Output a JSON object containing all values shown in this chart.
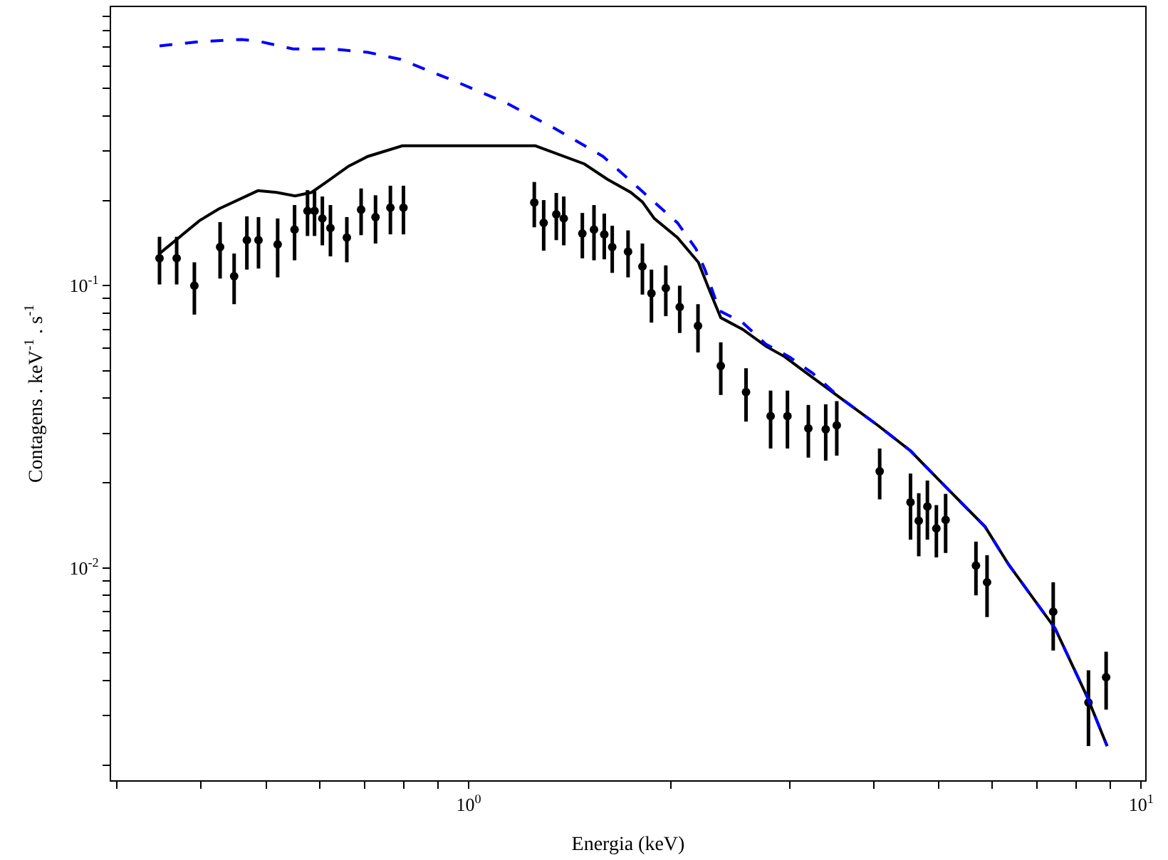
{
  "chart_data": {
    "type": "scatter",
    "xlabel": "Energia (keV)",
    "ylabel": "Contagens . keV$^{-1}$ . s$^{-1}$",
    "log": "xy",
    "legend": false,
    "xlim": [
      0.294,
      10.14
    ],
    "ylim": [
      0.00177,
      0.97
    ],
    "xticks": [
      {
        "value": 0.3,
        "label": null
      },
      {
        "value": 0.4,
        "label": null
      },
      {
        "value": 0.5,
        "label": null
      },
      {
        "value": 0.6,
        "label": null
      },
      {
        "value": 0.7,
        "label": null
      },
      {
        "value": 0.8,
        "label": null
      },
      {
        "value": 0.9,
        "label": null
      },
      {
        "value": 1,
        "label": "10$^{0}$"
      },
      {
        "value": 2,
        "label": null
      },
      {
        "value": 3,
        "label": null
      },
      {
        "value": 4,
        "label": null
      },
      {
        "value": 5,
        "label": null
      },
      {
        "value": 6,
        "label": null
      },
      {
        "value": 7,
        "label": null
      },
      {
        "value": 8,
        "label": null
      },
      {
        "value": 9,
        "label": null
      },
      {
        "value": 10,
        "label": "10$^{1}$"
      }
    ],
    "yticks": [
      {
        "value": 0.002,
        "label": null
      },
      {
        "value": 0.003,
        "label": null
      },
      {
        "value": 0.004,
        "label": null
      },
      {
        "value": 0.005,
        "label": null
      },
      {
        "value": 0.006,
        "label": null
      },
      {
        "value": 0.007,
        "label": null
      },
      {
        "value": 0.008,
        "label": null
      },
      {
        "value": 0.009,
        "label": null
      },
      {
        "value": 0.01,
        "label": "10$^{-2}$"
      },
      {
        "value": 0.02,
        "label": null
      },
      {
        "value": 0.03,
        "label": null
      },
      {
        "value": 0.04,
        "label": null
      },
      {
        "value": 0.05,
        "label": null
      },
      {
        "value": 0.06,
        "label": null
      },
      {
        "value": 0.07,
        "label": null
      },
      {
        "value": 0.08,
        "label": null
      },
      {
        "value": 0.09,
        "label": null
      },
      {
        "value": 0.1,
        "label": "10$^{-1}$"
      },
      {
        "value": 0.2,
        "label": null
      },
      {
        "value": 0.3,
        "label": null
      },
      {
        "value": 0.4,
        "label": null
      },
      {
        "value": 0.5,
        "label": null
      },
      {
        "value": 0.6,
        "label": null
      },
      {
        "value": 0.7,
        "label": null
      },
      {
        "value": 0.8,
        "label": null
      },
      {
        "value": 0.9,
        "label": null
      }
    ],
    "series": [
      {
        "type": "line",
        "color": "#0000ff",
        "line_style": "dashed",
        "marker": "none",
        "x": [
          0.347,
          0.398,
          0.46,
          0.49,
          0.548,
          0.623,
          0.708,
          0.791,
          0.958,
          1.133,
          1.339,
          1.439,
          1.584,
          1.8,
          2.044,
          2.178,
          2.249,
          2.36,
          2.556,
          2.768,
          2.997,
          3.246,
          3.573,
          4.06,
          4.54,
          5.075,
          5.86,
          6.35,
          7.45,
          8.32,
          8.9
        ],
        "values": [
          0.707,
          0.732,
          0.745,
          0.732,
          0.69,
          0.69,
          0.671,
          0.634,
          0.528,
          0.446,
          0.362,
          0.328,
          0.287,
          0.219,
          0.167,
          0.135,
          0.113,
          0.0815,
          0.074,
          0.062,
          0.056,
          0.049,
          0.04,
          0.032,
          0.026,
          0.0198,
          0.014,
          0.0103,
          0.0061,
          0.00348,
          0.00234
        ]
      },
      {
        "type": "line",
        "color": "#000000",
        "line_style": "solid",
        "marker": "none",
        "x": [
          0.347,
          0.398,
          0.425,
          0.486,
          0.518,
          0.552,
          0.584,
          0.613,
          0.663,
          0.708,
          0.797,
          1.257,
          1.486,
          1.609,
          1.742,
          1.813,
          1.888,
          2.044,
          2.196,
          2.286,
          2.371,
          2.556,
          2.768,
          2.951,
          3.145,
          3.573,
          4.06,
          4.54,
          5.075,
          5.86,
          6.35,
          7.45,
          8.32,
          8.9
        ],
        "values": [
          0.13,
          0.17,
          0.187,
          0.217,
          0.214,
          0.208,
          0.214,
          0.232,
          0.265,
          0.287,
          0.313,
          0.313,
          0.27,
          0.238,
          0.214,
          0.198,
          0.173,
          0.148,
          0.121,
          0.095,
          0.077,
          0.07,
          0.061,
          0.056,
          0.05,
          0.04,
          0.032,
          0.026,
          0.0198,
          0.014,
          0.0103,
          0.0061,
          0.00348,
          0.00234
        ]
      },
      {
        "color": "#000000",
        "marker": "circle",
        "x": [
          0.347,
          0.368,
          0.391,
          0.427,
          0.448,
          0.468,
          0.487,
          0.52,
          0.551,
          0.576,
          0.59,
          0.606,
          0.623,
          0.659,
          0.692,
          0.727,
          0.765,
          0.8,
          1.252,
          1.293,
          1.35,
          1.385,
          1.476,
          1.536,
          1.591,
          1.635,
          1.726,
          1.813,
          1.87,
          1.964,
          2.06,
          2.193,
          2.371,
          2.585,
          2.812,
          2.979,
          3.2,
          3.396,
          3.527,
          4.085,
          4.54,
          4.67,
          4.81,
          4.96,
          5.12,
          5.68,
          5.9,
          7.4,
          8.35,
          8.87
        ],
        "values": [
          0.125,
          0.125,
          0.1,
          0.137,
          0.108,
          0.145,
          0.145,
          0.14,
          0.158,
          0.184,
          0.184,
          0.173,
          0.16,
          0.148,
          0.186,
          0.175,
          0.189,
          0.189,
          0.197,
          0.167,
          0.179,
          0.173,
          0.153,
          0.158,
          0.152,
          0.137,
          0.132,
          0.117,
          0.094,
          0.098,
          0.084,
          0.072,
          0.052,
          0.042,
          0.0345,
          0.0345,
          0.0312,
          0.031,
          0.032,
          0.022,
          0.0171,
          0.0147,
          0.0165,
          0.0138,
          0.0148,
          0.0102,
          0.0089,
          0.007,
          0.00334,
          0.0041
        ],
        "errors": [
          0.024,
          0.024,
          0.021,
          0.031,
          0.022,
          0.031,
          0.03,
          0.033,
          0.035,
          0.034,
          0.034,
          0.034,
          0.033,
          0.027,
          0.035,
          0.034,
          0.037,
          0.037,
          0.036,
          0.034,
          0.034,
          0.034,
          0.028,
          0.035,
          0.028,
          0.026,
          0.025,
          0.024,
          0.02,
          0.02,
          0.016,
          0.014,
          0.011,
          0.009,
          0.008,
          0.008,
          0.0066,
          0.007,
          0.007,
          0.0045,
          0.0045,
          0.0037,
          0.0039,
          0.0029,
          0.0035,
          0.0022,
          0.0022,
          0.0019,
          0.001,
          0.00095
        ]
      }
    ]
  }
}
